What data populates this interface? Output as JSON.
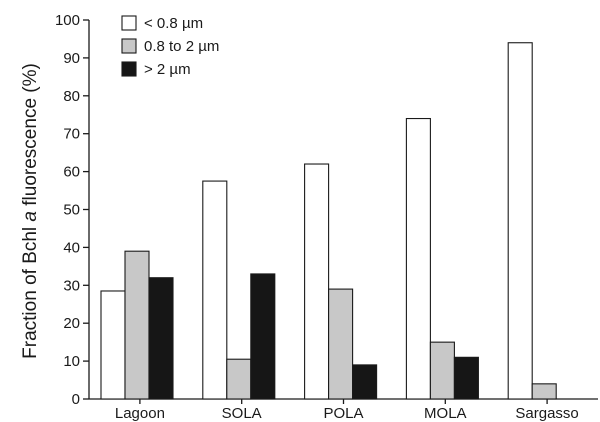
{
  "chart_data": {
    "type": "bar",
    "ylabel_parts": [
      "Fraction of Bchl ",
      "a",
      " fluorescence (%)"
    ],
    "categories": [
      "Lagoon",
      "SOLA",
      "POLA",
      "MOLA",
      "Sargasso"
    ],
    "series": [
      {
        "name": "< 0.8 µm",
        "color": "#ffffff",
        "values": [
          28.5,
          57.5,
          62,
          74,
          94
        ]
      },
      {
        "name": "0.8 to 2 µm",
        "color": "#c8c8c8",
        "values": [
          39,
          10.5,
          29,
          15,
          4
        ]
      },
      {
        "name": "> 2 µm",
        "color": "#161616",
        "values": [
          32,
          33,
          9,
          11,
          0
        ]
      }
    ],
    "ylim": [
      0,
      100
    ],
    "yticks": [
      0,
      10,
      20,
      30,
      40,
      50,
      60,
      70,
      80,
      90,
      100
    ],
    "grid": false,
    "legend_position": "top-left"
  }
}
